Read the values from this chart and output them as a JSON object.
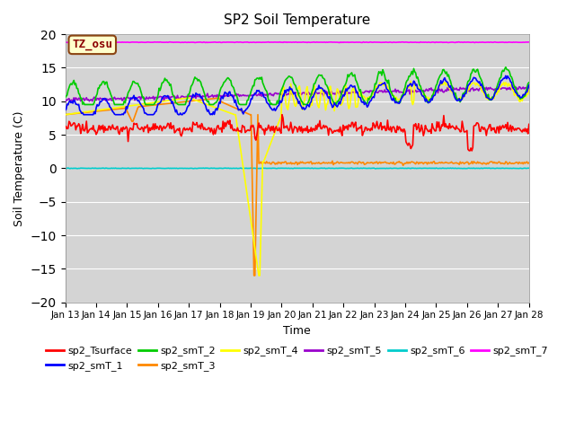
{
  "title": "SP2 Soil Temperature",
  "xlabel": "Time",
  "ylabel": "Soil Temperature (C)",
  "ylim": [
    -20,
    20
  ],
  "background_color": "#d4d4d4",
  "fig_bg": "#ffffff",
  "annotation_text": "TZ_osu",
  "annotation_color": "#8B0000",
  "annotation_bg": "#ffffcc",
  "annotation_border": "#8B4513",
  "colors": {
    "sp2_Tsurface": "#ff0000",
    "sp2_smT_1": "#0000ff",
    "sp2_smT_2": "#00cc00",
    "sp2_smT_3": "#ff8800",
    "sp2_smT_4": "#ffff00",
    "sp2_smT_5": "#9900cc",
    "sp2_smT_6": "#00cccc",
    "sp2_smT_7": "#ff00ff"
  },
  "x_tick_labels": [
    "Jan 13",
    "Jan 14",
    "Jan 15",
    "Jan 16",
    "Jan 17",
    "Jan 18",
    "Jan 19",
    "Jan 20",
    "Jan 21",
    "Jan 22",
    "Jan 23",
    "Jan 24",
    "Jan 25",
    "Jan 26",
    "Jan 27",
    "Jan 28"
  ],
  "yticks": [
    -20,
    -15,
    -10,
    -5,
    0,
    5,
    10,
    15,
    20
  ],
  "num_points": 480,
  "figsize": [
    6.4,
    4.8
  ],
  "dpi": 100
}
